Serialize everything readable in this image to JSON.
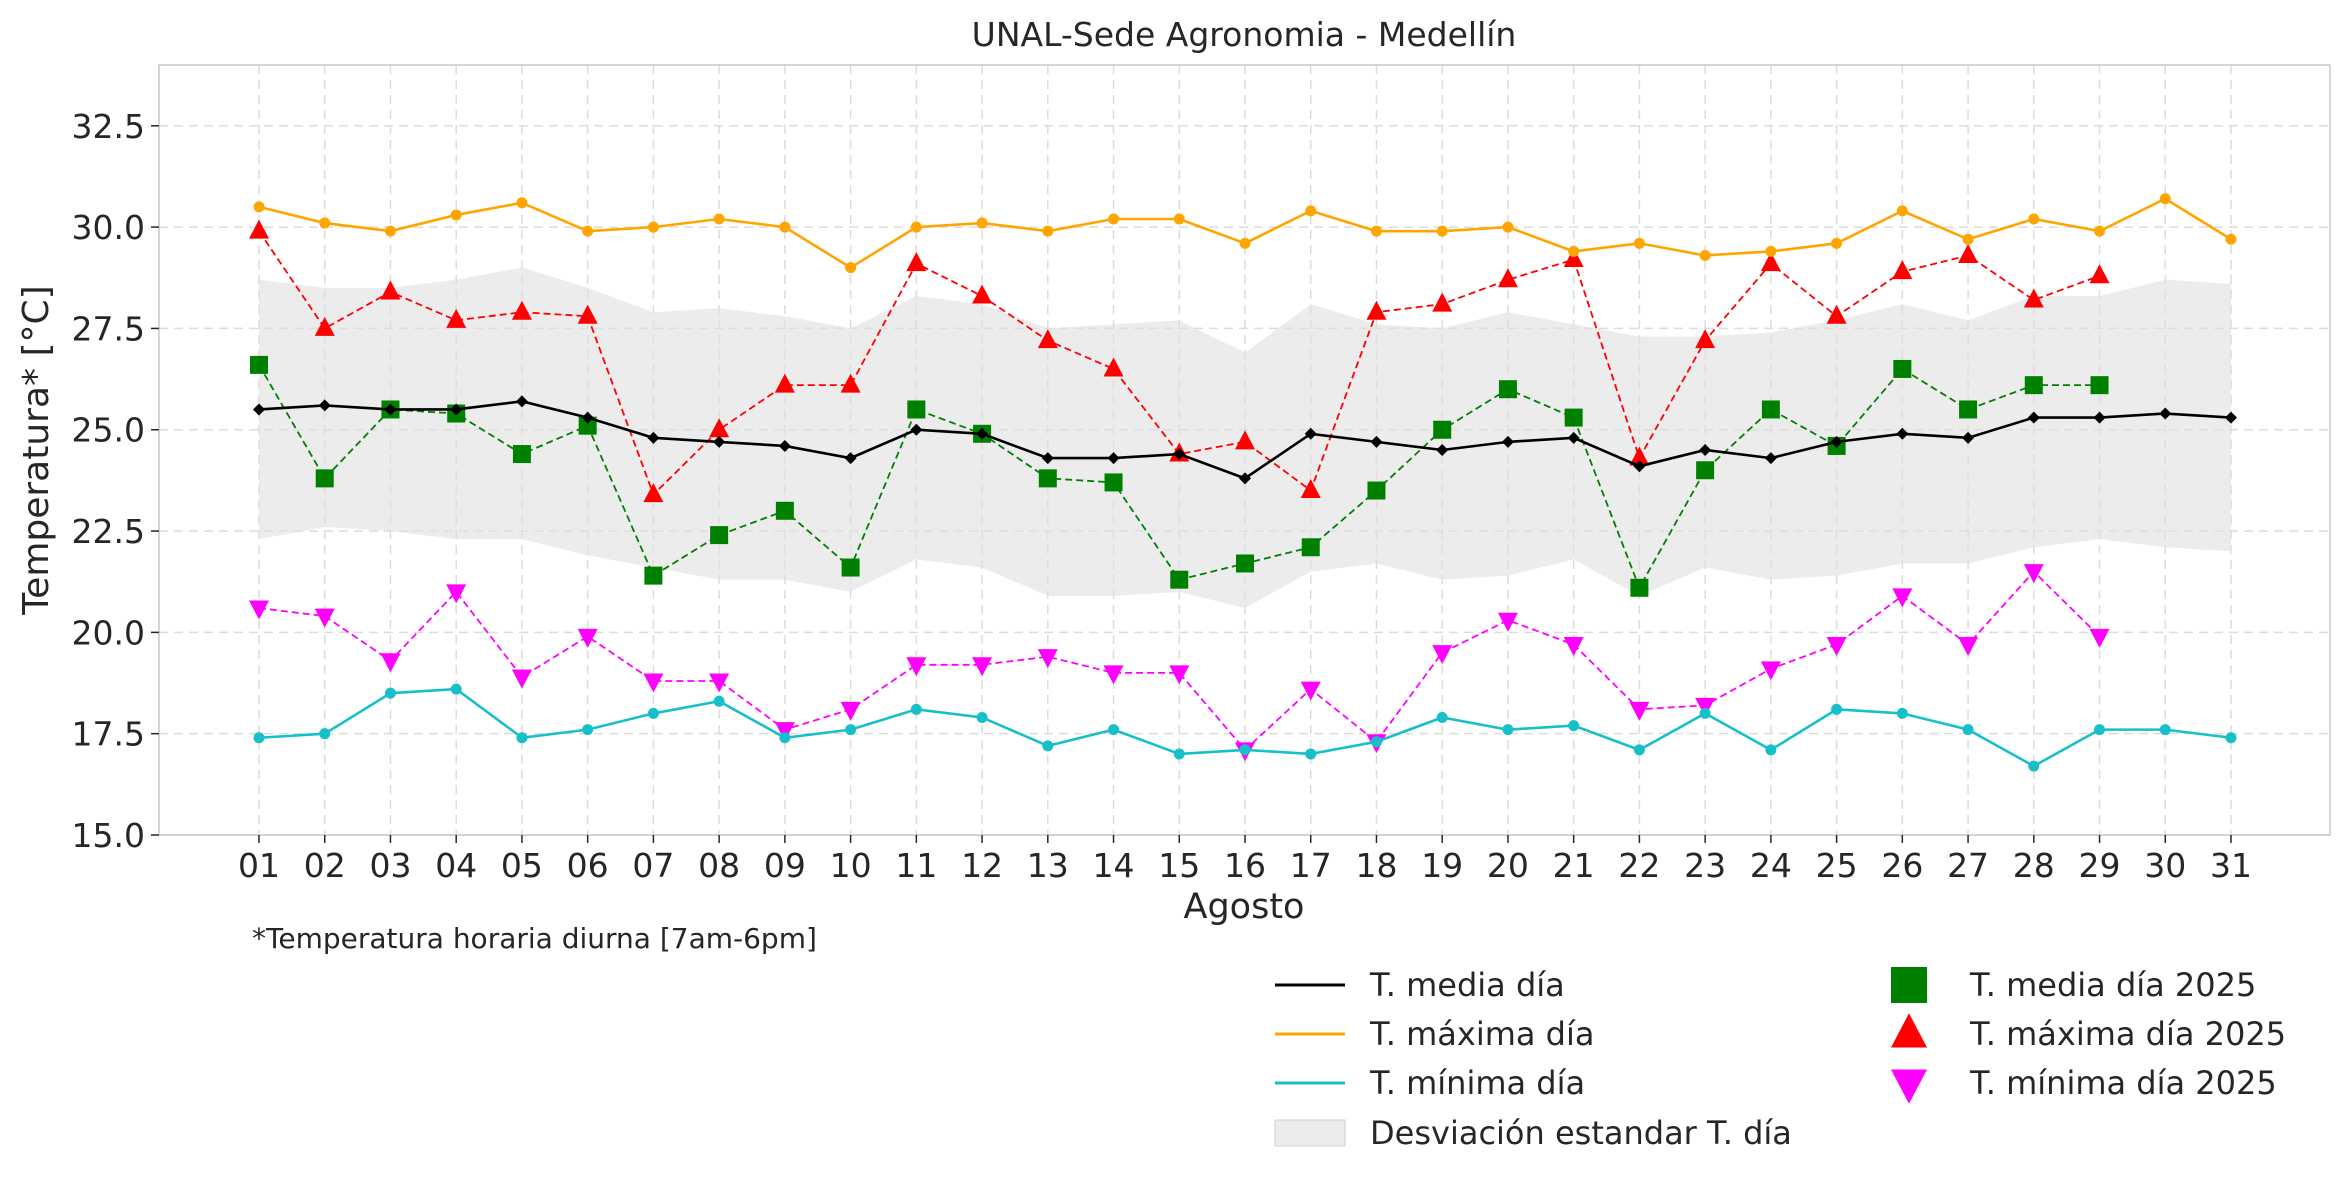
{
  "chart_data": {
    "type": "line",
    "title": "UNAL-Sede Agronomia - Medellín",
    "xlabel": "Agosto",
    "ylabel": "Temperatura* [°C]",
    "footnote": "*Temperatura horaria diurna [7am-6pm]",
    "ylim": [
      15.0,
      34.0
    ],
    "yticks": [
      "15.0",
      "17.5",
      "20.0",
      "22.5",
      "25.0",
      "27.5",
      "30.0",
      "32.5"
    ],
    "grid": true,
    "legend_position": "bottom-right",
    "categories": [
      "01",
      "02",
      "03",
      "04",
      "05",
      "06",
      "07",
      "08",
      "09",
      "10",
      "11",
      "12",
      "13",
      "14",
      "15",
      "16",
      "17",
      "18",
      "19",
      "20",
      "21",
      "22",
      "23",
      "24",
      "25",
      "26",
      "27",
      "28",
      "29",
      "30",
      "31"
    ],
    "band": {
      "name": "Desviación estandar T. día",
      "color": "#e0e0e0",
      "upper": [
        28.7,
        28.5,
        28.5,
        28.7,
        29.0,
        28.5,
        27.9,
        28.0,
        27.8,
        27.5,
        28.3,
        28.1,
        27.5,
        27.6,
        27.7,
        26.9,
        28.1,
        27.6,
        27.5,
        27.9,
        27.6,
        27.3,
        27.3,
        27.4,
        27.7,
        28.1,
        27.7,
        28.3,
        28.3,
        28.7,
        28.6
      ],
      "lower": [
        22.3,
        22.6,
        22.5,
        22.3,
        22.3,
        21.9,
        21.6,
        21.3,
        21.3,
        21.0,
        21.8,
        21.6,
        20.9,
        20.9,
        21.0,
        20.6,
        21.5,
        21.7,
        21.3,
        21.4,
        21.8,
        20.9,
        21.6,
        21.3,
        21.4,
        21.7,
        21.7,
        22.1,
        22.3,
        22.1,
        22.0
      ]
    },
    "series": [
      {
        "name": "T. media día",
        "color": "#000000",
        "style": "solid",
        "marker": "diamond",
        "values": [
          25.5,
          25.6,
          25.5,
          25.5,
          25.7,
          25.3,
          24.8,
          24.7,
          24.6,
          24.3,
          25.0,
          24.9,
          24.3,
          24.3,
          24.4,
          23.8,
          24.9,
          24.7,
          24.5,
          24.7,
          24.8,
          24.1,
          24.5,
          24.3,
          24.7,
          24.9,
          24.8,
          25.3,
          25.3,
          25.4,
          25.3
        ]
      },
      {
        "name": "T. máxima día",
        "color": "#ffa500",
        "style": "solid",
        "marker": "circle",
        "values": [
          30.5,
          30.1,
          29.9,
          30.3,
          30.6,
          29.9,
          30.0,
          30.2,
          30.0,
          29.0,
          30.0,
          30.1,
          29.9,
          30.2,
          30.2,
          29.6,
          30.4,
          29.9,
          29.9,
          30.0,
          29.4,
          29.6,
          29.3,
          29.4,
          29.6,
          30.4,
          29.7,
          30.2,
          29.9,
          30.7,
          29.7
        ]
      },
      {
        "name": "T. mínima día",
        "color": "#17bfc9",
        "style": "solid",
        "marker": "circle",
        "values": [
          17.4,
          17.5,
          18.5,
          18.6,
          17.4,
          17.6,
          18.0,
          18.3,
          17.4,
          17.6,
          18.1,
          17.9,
          17.2,
          17.6,
          17.0,
          17.1,
          17.0,
          17.3,
          17.9,
          17.6,
          17.7,
          17.1,
          18.0,
          17.1,
          18.1,
          18.0,
          17.6,
          16.7,
          17.6,
          17.6,
          17.4
        ]
      },
      {
        "name": "T. media día 2025",
        "color": "#008000",
        "style": "dashed",
        "marker": "square",
        "values": [
          26.6,
          23.8,
          25.5,
          25.4,
          24.4,
          25.1,
          21.4,
          22.4,
          23.0,
          21.6,
          25.5,
          24.9,
          23.8,
          23.7,
          21.3,
          21.7,
          22.1,
          23.5,
          25.0,
          26.0,
          25.3,
          21.1,
          24.0,
          25.5,
          24.6,
          26.5,
          25.5,
          26.1,
          26.1,
          null,
          null
        ]
      },
      {
        "name": "T. máxima día 2025",
        "color": "#ff0000",
        "style": "dashed",
        "marker": "triangle-up",
        "values": [
          29.9,
          27.5,
          28.4,
          27.7,
          27.9,
          27.8,
          23.4,
          25.0,
          26.1,
          26.1,
          29.1,
          28.3,
          27.2,
          26.5,
          24.4,
          24.7,
          23.5,
          27.9,
          28.1,
          28.7,
          29.2,
          24.3,
          27.2,
          29.1,
          27.8,
          28.9,
          29.3,
          28.2,
          28.8,
          null,
          null
        ]
      },
      {
        "name": "T. mínima día 2025",
        "color": "#ff00ff",
        "style": "dashed",
        "marker": "triangle-down",
        "values": [
          20.6,
          20.4,
          19.3,
          21.0,
          18.9,
          19.9,
          18.8,
          18.8,
          17.6,
          18.1,
          19.2,
          19.2,
          19.4,
          19.0,
          19.0,
          17.1,
          18.6,
          17.3,
          19.5,
          20.3,
          19.7,
          18.1,
          18.2,
          19.1,
          19.7,
          20.9,
          19.7,
          21.5,
          19.9,
          null,
          null
        ]
      }
    ]
  }
}
